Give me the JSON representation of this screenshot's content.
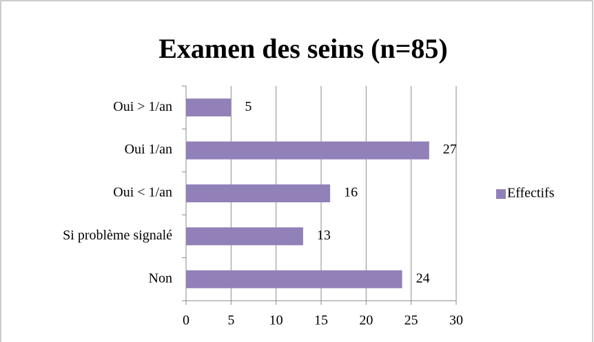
{
  "chart_data": {
    "type": "bar",
    "orientation": "horizontal",
    "title": "Examen des seins (n=85)",
    "categories": [
      "Oui > 1/an",
      "Oui 1/an",
      "Oui < 1/an",
      "Si problème signalé",
      "Non"
    ],
    "series": [
      {
        "name": "Effectifs",
        "color": "#9280b8",
        "values": [
          5,
          27,
          16,
          13,
          24
        ]
      }
    ],
    "xlim": [
      0,
      30
    ],
    "xticks": [
      0,
      5,
      10,
      15,
      20,
      25,
      30
    ],
    "grid": true,
    "legend": "right"
  }
}
